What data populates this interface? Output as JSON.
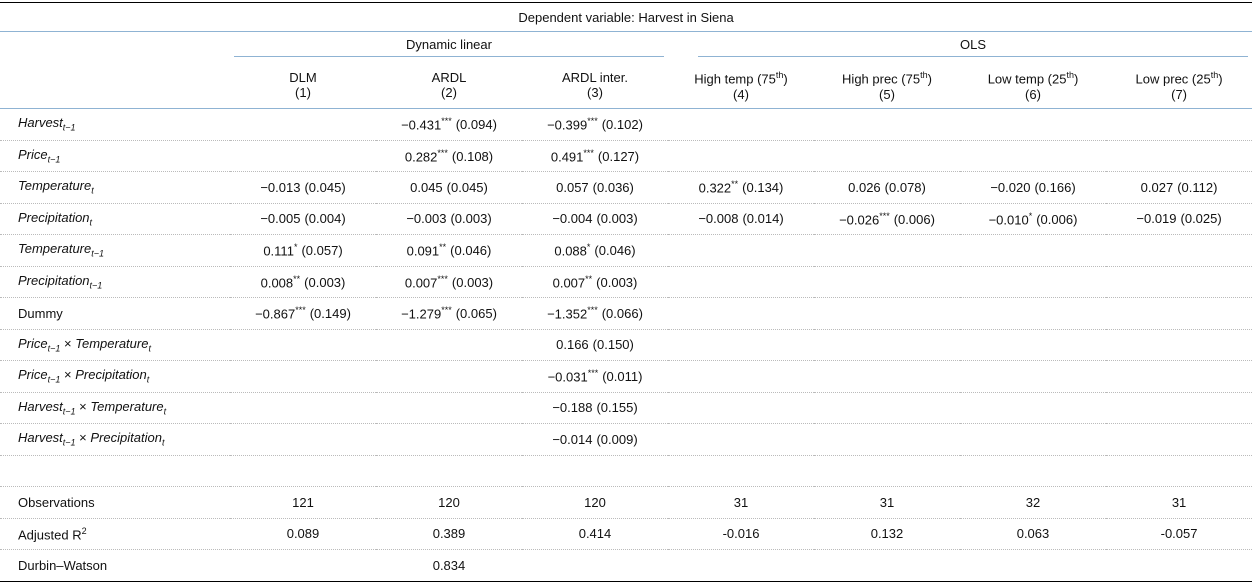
{
  "caption": "Dependent variable: Harvest in Siena",
  "groups": [
    {
      "label": "Dynamic linear",
      "columns": [
        {
          "label": [
            {
              "text": "DLM"
            }
          ],
          "number": "(1)"
        },
        {
          "label": [
            {
              "text": "ARDL"
            }
          ],
          "number": "(2)"
        },
        {
          "label": [
            {
              "text": "ARDL inter."
            }
          ],
          "number": "(3)"
        }
      ]
    },
    {
      "label": "OLS",
      "columns": [
        {
          "label": [
            {
              "text": "High temp (75",
              "sup": "th"
            },
            {
              "text": ")"
            }
          ],
          "number": "(4)"
        },
        {
          "label": [
            {
              "text": "High prec (75",
              "sup": "th"
            },
            {
              "text": ")"
            }
          ],
          "number": "(5)"
        },
        {
          "label": [
            {
              "text": "Low temp (25",
              "sup": "th"
            },
            {
              "text": ")"
            }
          ],
          "number": "(6)"
        },
        {
          "label": [
            {
              "text": "Low prec (25",
              "sup": "th"
            },
            {
              "text": ")"
            }
          ],
          "number": "(7)"
        }
      ]
    }
  ],
  "rows": [
    {
      "label": [
        {
          "text": "Harvest",
          "sub": "t−1"
        }
      ],
      "cells": [
        null,
        {
          "coef": "−0.431",
          "stars": "***",
          "se": "(0.094)"
        },
        {
          "coef": "−0.399",
          "stars": "***",
          "se": "(0.102)"
        },
        null,
        null,
        null,
        null
      ]
    },
    {
      "label": [
        {
          "text": "Price",
          "sub": "t−1"
        }
      ],
      "cells": [
        null,
        {
          "coef": "0.282",
          "stars": "***",
          "se": "(0.108)"
        },
        {
          "coef": "0.491",
          "stars": "***",
          "se": "(0.127)"
        },
        null,
        null,
        null,
        null
      ]
    },
    {
      "label": [
        {
          "text": "Temperature",
          "sub": "t"
        }
      ],
      "cells": [
        {
          "coef": "−0.013",
          "se": "(0.045)"
        },
        {
          "coef": "0.045",
          "se": "(0.045)"
        },
        {
          "coef": "0.057",
          "se": "(0.036)"
        },
        {
          "coef": "0.322",
          "stars": "**",
          "se": "(0.134)"
        },
        {
          "coef": "0.026",
          "se": "(0.078)"
        },
        {
          "coef": "−0.020",
          "se": "(0.166)"
        },
        {
          "coef": "0.027",
          "se": "(0.112)"
        }
      ]
    },
    {
      "label": [
        {
          "text": "Precipitation",
          "sub": "t"
        }
      ],
      "cells": [
        {
          "coef": "−0.005",
          "se": "(0.004)"
        },
        {
          "coef": "−0.003",
          "se": "(0.003)"
        },
        {
          "coef": "−0.004",
          "se": "(0.003)"
        },
        {
          "coef": "−0.008",
          "se": "(0.014)"
        },
        {
          "coef": "−0.026",
          "stars": "***",
          "se": "(0.006)"
        },
        {
          "coef": "−0.010",
          "stars": "*",
          "se": "(0.006)"
        },
        {
          "coef": "−0.019",
          "se": "(0.025)"
        }
      ]
    },
    {
      "label": [
        {
          "text": "Temperature",
          "sub": "t−1"
        }
      ],
      "cells": [
        {
          "coef": "0.111",
          "stars": "*",
          "se": "(0.057)"
        },
        {
          "coef": "0.091",
          "stars": "**",
          "se": "(0.046)"
        },
        {
          "coef": "0.088",
          "stars": "*",
          "se": "(0.046)"
        },
        null,
        null,
        null,
        null
      ]
    },
    {
      "label": [
        {
          "text": "Precipitation",
          "sub": "t−1"
        }
      ],
      "cells": [
        {
          "coef": "0.008",
          "stars": "**",
          "se": "(0.003)"
        },
        {
          "coef": "0.007",
          "stars": "***",
          "se": "(0.003)"
        },
        {
          "coef": "0.007",
          "stars": "**",
          "se": "(0.003)"
        },
        null,
        null,
        null,
        null
      ]
    },
    {
      "label": [
        {
          "text": "Dummy"
        }
      ],
      "cells": [
        {
          "coef": "−0.867",
          "stars": "***",
          "se": "(0.149)"
        },
        {
          "coef": "−1.279",
          "stars": "***",
          "se": "(0.065)"
        },
        {
          "coef": "−1.352",
          "stars": "***",
          "se": "(0.066)"
        },
        null,
        null,
        null,
        null
      ]
    },
    {
      "label": [
        {
          "text": "Price",
          "sub": "t−1"
        },
        {
          "text": " × "
        },
        {
          "text": "Temperature",
          "sub": "t"
        }
      ],
      "cells": [
        null,
        null,
        {
          "coef": "0.166",
          "se": "(0.150)"
        },
        null,
        null,
        null,
        null
      ]
    },
    {
      "label": [
        {
          "text": "Price",
          "sub": "t−1"
        },
        {
          "text": " × "
        },
        {
          "text": "Precipitation",
          "sub": "t"
        }
      ],
      "cells": [
        null,
        null,
        {
          "coef": "−0.031",
          "stars": "***",
          "se": "(0.011)"
        },
        null,
        null,
        null,
        null
      ]
    },
    {
      "label": [
        {
          "text": "Harvest",
          "sub": "t−1"
        },
        {
          "text": " × "
        },
        {
          "text": "Temperature",
          "sub": "t"
        }
      ],
      "cells": [
        null,
        null,
        {
          "coef": "−0.188",
          "se": "(0.155)"
        },
        null,
        null,
        null,
        null
      ]
    },
    {
      "label": [
        {
          "text": "Harvest",
          "sub": "t−1"
        },
        {
          "text": " × "
        },
        {
          "text": "Precipitation",
          "sub": "t"
        }
      ],
      "cells": [
        null,
        null,
        {
          "coef": "−0.014",
          "se": "(0.009)"
        },
        null,
        null,
        null,
        null
      ]
    }
  ],
  "stats": [
    {
      "label": [
        {
          "text": "Observations"
        }
      ],
      "values": [
        121,
        120,
        120,
        31,
        31,
        32,
        31
      ]
    },
    {
      "label": [
        {
          "text": "Adjusted R",
          "sup": "2"
        }
      ],
      "values": [
        0.089,
        0.389,
        0.414,
        -0.016,
        0.132,
        0.063,
        -0.057
      ]
    },
    {
      "label": [
        {
          "text": "Durbin–Watson"
        }
      ],
      "values": [
        null,
        0.834,
        null,
        null,
        null,
        null,
        null
      ]
    }
  ]
}
